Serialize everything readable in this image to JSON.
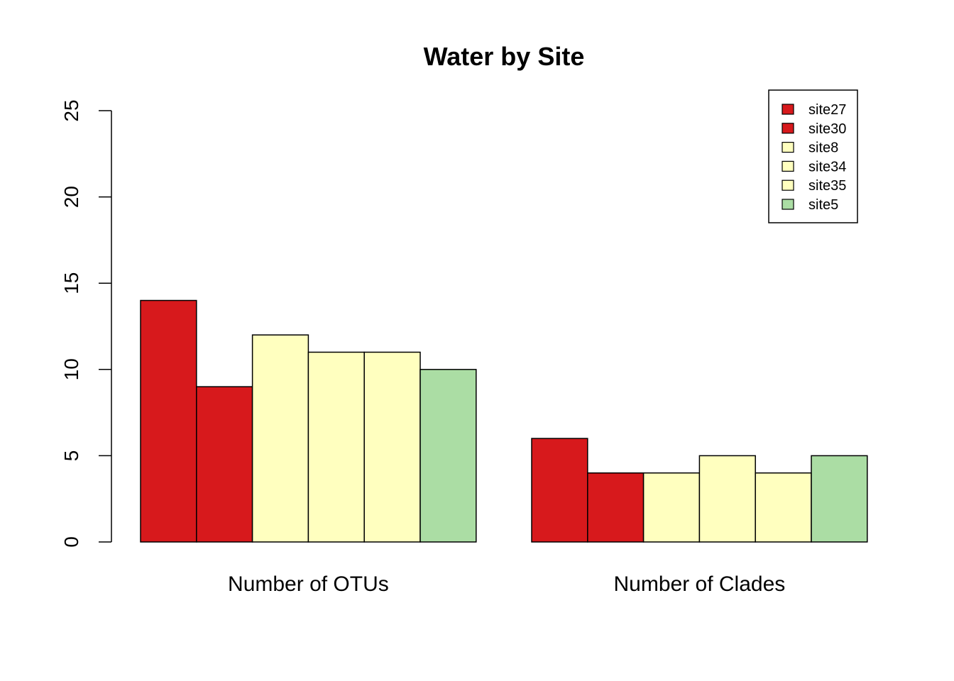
{
  "chart_data": {
    "type": "bar",
    "title": "Water by Site",
    "xlabel": "",
    "ylabel": "",
    "categories": [
      "Number of OTUs",
      "Number of Clades"
    ],
    "series": [
      {
        "name": "site27",
        "color": "#d7191c",
        "values": [
          14,
          6
        ]
      },
      {
        "name": "site30",
        "color": "#d7191c",
        "values": [
          9,
          4
        ]
      },
      {
        "name": "site8",
        "color": "#ffffbf",
        "values": [
          12,
          4
        ]
      },
      {
        "name": "site34",
        "color": "#ffffbf",
        "values": [
          11,
          5
        ]
      },
      {
        "name": "site35",
        "color": "#ffffbf",
        "values": [
          11,
          4
        ]
      },
      {
        "name": "site5",
        "color": "#abdda4",
        "values": [
          10,
          5
        ]
      }
    ],
    "ylim": [
      0,
      25
    ],
    "yticks": [
      0,
      5,
      10,
      15,
      20,
      25
    ],
    "grid": false,
    "legend_position": "top-right"
  }
}
